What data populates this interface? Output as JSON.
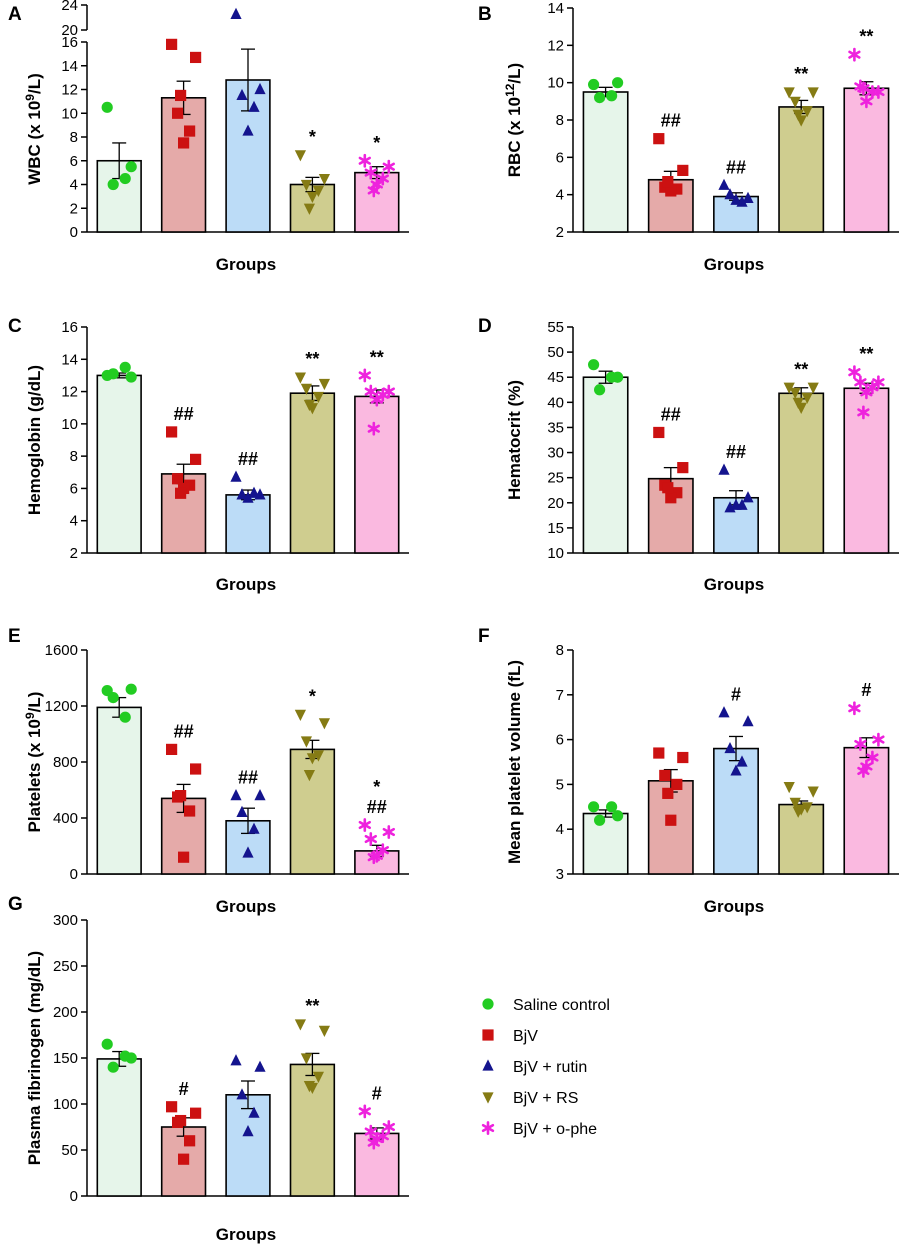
{
  "groups": [
    {
      "name": "Saline control",
      "color": "#22cc22",
      "fill": "#e6f5ea",
      "marker": "circle"
    },
    {
      "name": "BjV",
      "color": "#cc1111",
      "fill": "#e5aaa9",
      "marker": "square"
    },
    {
      "name": "BjV + rutin",
      "color": "#14148e",
      "fill": "#bcdcf7",
      "marker": "triangle"
    },
    {
      "name": "BjV + RS",
      "color": "#857b14",
      "fill": "#cfcd8f",
      "marker": "triangle-down"
    },
    {
      "name": "BjV + o-phe",
      "color": "#ee22dd",
      "fill": "#fab9e0",
      "marker": "asterisk"
    }
  ],
  "chart_data": [
    {
      "panel": "A",
      "type": "bar",
      "ylabel": "WBC (x 10",
      "ylabel_sup": "9",
      "ylabel_tail": "/L)",
      "xlabel": "Groups",
      "categories": [
        "Saline control",
        "BjV",
        "BjV + rutin",
        "BjV + RS",
        "BjV + o-phe"
      ],
      "broken_axis": true,
      "ylim": [
        0,
        16
      ],
      "yticks": [
        "0",
        "2",
        "4",
        "6",
        "8",
        "10",
        "12",
        "14",
        "16"
      ],
      "ylim_upper": [
        20,
        24
      ],
      "yticks_upper": [
        "20",
        "24"
      ],
      "means": [
        6.0,
        11.3,
        12.8,
        4.0,
        5.0
      ],
      "sem": [
        1.5,
        1.4,
        2.6,
        0.6,
        0.5
      ],
      "points": [
        [
          10.5,
          5.5,
          4.0,
          4.5
        ],
        [
          15.8,
          14.7,
          10.0,
          8.5,
          7.5,
          11.5
        ],
        [
          22.5,
          12.0,
          11.5,
          10.5,
          8.5
        ],
        [
          6.5,
          4.5,
          4.0,
          3.5,
          3.0,
          2.0
        ],
        [
          6.0,
          5.5,
          5.0,
          4.5,
          4.0,
          3.5
        ]
      ],
      "annotations": [
        {
          "group": 3,
          "text": "*"
        },
        {
          "group": 4,
          "text": "*"
        }
      ]
    },
    {
      "panel": "B",
      "type": "bar",
      "ylabel": "RBC (x 10",
      "ylabel_sup": "12",
      "ylabel_tail": "/L)",
      "xlabel": "Groups",
      "categories": [
        "Saline control",
        "BjV",
        "BjV + rutin",
        "BjV + RS",
        "BjV + o-phe"
      ],
      "ylim": [
        2,
        14
      ],
      "yticks": [
        "2",
        "4",
        "6",
        "8",
        "10",
        "12",
        "14"
      ],
      "means": [
        9.5,
        4.8,
        3.9,
        8.7,
        9.7
      ],
      "sem": [
        0.25,
        0.45,
        0.2,
        0.35,
        0.35
      ],
      "points": [
        [
          9.9,
          10.0,
          9.2,
          9.3
        ],
        [
          7.0,
          5.3,
          4.4,
          4.3,
          4.2,
          4.7
        ],
        [
          4.5,
          3.8,
          4.0,
          3.6,
          3.7
        ],
        [
          9.5,
          9.5,
          9.0,
          8.5,
          8.0,
          8.3
        ],
        [
          11.5,
          9.5,
          9.8,
          9.5,
          9.0,
          9.7
        ]
      ],
      "annotations": [
        {
          "group": 1,
          "text": "##"
        },
        {
          "group": 2,
          "text": "##"
        },
        {
          "group": 3,
          "text": "**"
        },
        {
          "group": 4,
          "text": "**"
        }
      ]
    },
    {
      "panel": "C",
      "type": "bar",
      "ylabel": "Hemoglobin (g/dL)",
      "xlabel": "Groups",
      "categories": [
        "Saline control",
        "BjV",
        "BjV + rutin",
        "BjV + RS",
        "BjV + o-phe"
      ],
      "ylim": [
        2,
        16
      ],
      "yticks": [
        "2",
        "4",
        "6",
        "8",
        "10",
        "12",
        "14",
        "16"
      ],
      "means": [
        13.0,
        6.9,
        5.6,
        11.9,
        11.7
      ],
      "sem": [
        0.15,
        0.6,
        0.3,
        0.45,
        0.4
      ],
      "points": [
        [
          13.0,
          12.9,
          13.1,
          13.5
        ],
        [
          9.5,
          7.8,
          6.6,
          6.2,
          6.0,
          5.7
        ],
        [
          6.7,
          5.6,
          5.6,
          5.7,
          5.4
        ],
        [
          12.9,
          12.5,
          12.2,
          11.7,
          11.0,
          11.2
        ],
        [
          13.0,
          12.0,
          12.0,
          11.8,
          11.5,
          9.7
        ]
      ],
      "annotations": [
        {
          "group": 1,
          "text": "##"
        },
        {
          "group": 2,
          "text": "##"
        },
        {
          "group": 3,
          "text": "**"
        },
        {
          "group": 4,
          "text": "**"
        }
      ]
    },
    {
      "panel": "D",
      "type": "bar",
      "ylabel": "Hematocrit (%)",
      "xlabel": "Groups",
      "categories": [
        "Saline control",
        "BjV",
        "BjV + rutin",
        "BjV + RS",
        "BjV + o-phe"
      ],
      "ylim": [
        10,
        55
      ],
      "yticks": [
        "10",
        "15",
        "20",
        "25",
        "30",
        "35",
        "40",
        "45",
        "50",
        "55"
      ],
      "means": [
        45.0,
        24.8,
        21.0,
        41.8,
        42.8
      ],
      "sem": [
        1.2,
        2.2,
        1.4,
        1.1,
        1.0
      ],
      "points": [
        [
          47.5,
          45.0,
          42.5,
          45.0
        ],
        [
          34.0,
          27.0,
          23.5,
          22.0,
          21.0,
          23.0
        ],
        [
          26.5,
          21.0,
          19.0,
          19.5,
          19.5
        ],
        [
          43.0,
          43.0,
          42.0,
          41.0,
          39.0,
          40.0
        ],
        [
          46.0,
          44.0,
          44.0,
          43.0,
          42.0,
          38.0
        ]
      ],
      "annotations": [
        {
          "group": 1,
          "text": "##"
        },
        {
          "group": 2,
          "text": "##"
        },
        {
          "group": 3,
          "text": "**"
        },
        {
          "group": 4,
          "text": "**"
        }
      ]
    },
    {
      "panel": "E",
      "type": "bar",
      "ylabel": "Platelets (x 10",
      "ylabel_sup": "9",
      "ylabel_tail": "/L)",
      "xlabel": "Groups",
      "categories": [
        "Saline control",
        "BjV",
        "BjV + rutin",
        "BjV + RS",
        "BjV + o-phe"
      ],
      "ylim": [
        0,
        1600
      ],
      "yticks": [
        "0",
        "400",
        "800",
        "1200",
        "1600"
      ],
      "means": [
        1190,
        540,
        380,
        890,
        165
      ],
      "sem": [
        70,
        100,
        90,
        65,
        40
      ],
      "points": [
        [
          1310,
          1320,
          1260,
          1120
        ],
        [
          890,
          750,
          550,
          450,
          120,
          560
        ],
        [
          560,
          560,
          440,
          320,
          150
        ],
        [
          1140,
          1080,
          950,
          850,
          830,
          710
        ],
        [
          350,
          300,
          250,
          170,
          130,
          120
        ]
      ],
      "annotations": [
        {
          "group": 1,
          "text": "##"
        },
        {
          "group": 2,
          "text": "##"
        },
        {
          "group": 3,
          "text": "*"
        },
        {
          "group": 4,
          "text": "*"
        },
        {
          "group": 4,
          "text": "##"
        }
      ]
    },
    {
      "panel": "F",
      "type": "bar",
      "ylabel": "Mean platelet volume (fL)",
      "xlabel": "Groups",
      "categories": [
        "Saline control",
        "BjV",
        "BjV + rutin",
        "BjV + RS",
        "BjV + o-phe"
      ],
      "ylim": [
        3,
        8
      ],
      "yticks": [
        "3",
        "4",
        "5",
        "6",
        "7",
        "8"
      ],
      "means": [
        4.35,
        5.08,
        5.8,
        4.55,
        5.82
      ],
      "sem": [
        0.08,
        0.25,
        0.27,
        0.08,
        0.22
      ],
      "points": [
        [
          4.5,
          4.3,
          4.2,
          4.5
        ],
        [
          5.7,
          5.6,
          5.2,
          5.0,
          4.2,
          4.8
        ],
        [
          6.6,
          6.4,
          5.8,
          5.5,
          5.3
        ],
        [
          4.95,
          4.85,
          4.6,
          4.5,
          4.45,
          4.4
        ],
        [
          6.7,
          6.0,
          5.9,
          5.6,
          5.4,
          5.3
        ]
      ],
      "annotations": [
        {
          "group": 2,
          "text": "#"
        },
        {
          "group": 4,
          "text": "#"
        }
      ]
    },
    {
      "panel": "G",
      "type": "bar",
      "ylabel": "Plasma fibrinogen (mg/dL)",
      "xlabel": "Groups",
      "categories": [
        "Saline control",
        "BjV",
        "BjV + rutin",
        "BjV + RS",
        "BjV + o-phe"
      ],
      "ylim": [
        0,
        300
      ],
      "yticks": [
        "0",
        "50",
        "100",
        "150",
        "200",
        "250",
        "300"
      ],
      "means": [
        149,
        75,
        110,
        143,
        68
      ],
      "sem": [
        8,
        10,
        15,
        12,
        6
      ],
      "points": [
        [
          165,
          150,
          140,
          152
        ],
        [
          97,
          90,
          80,
          60,
          40,
          82
        ],
        [
          147,
          140,
          110,
          90,
          70
        ],
        [
          187,
          180,
          150,
          130,
          118,
          120
        ],
        [
          92,
          75,
          70,
          65,
          62,
          58
        ]
      ],
      "annotations": [
        {
          "group": 1,
          "text": "#"
        },
        {
          "group": 3,
          "text": "**"
        },
        {
          "group": 4,
          "text": "#"
        }
      ]
    }
  ]
}
